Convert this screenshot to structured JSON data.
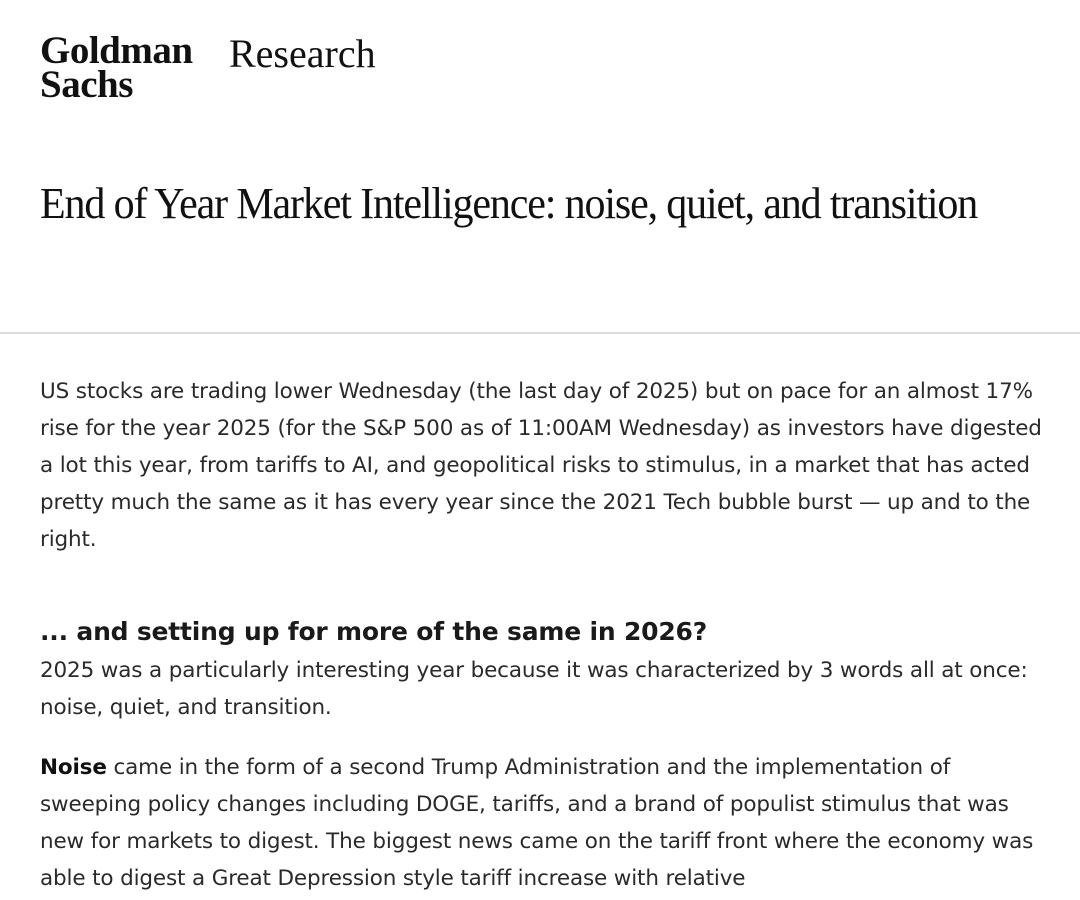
{
  "header": {
    "logo_line1": "Goldman",
    "logo_line2": "Sachs",
    "section": "Research"
  },
  "article": {
    "title": "End of Year Market Intelligence: noise, quiet, and transition",
    "intro": "US stocks are trading lower Wednesday (the last day of 2025) but on pace for an almost 17% rise for the year 2025 (for the S&P 500 as of 11:00AM Wednesday) as investors have digested a lot this year, from tariffs to AI, and geopolitical risks to stimulus, in a market that has acted pretty much the same as it has every year since the 2021 Tech bubble burst — up and to the right.",
    "subheading": "... and setting up for more of the same in 2026?",
    "paragraph2": "2025 was a particularly interesting year because it was characterized by 3 words all at once: noise, quiet, and transition.",
    "paragraph3_lead": "Noise",
    "paragraph3_rest": " came in the form of a second Trump Administration and the implementation of sweeping policy changes including DOGE, tariffs, and a brand of populist stimulus that was new for markets to digest.  The biggest news came on the tariff front where the economy was able to digest a Great Depression style tariff increase with relative"
  }
}
